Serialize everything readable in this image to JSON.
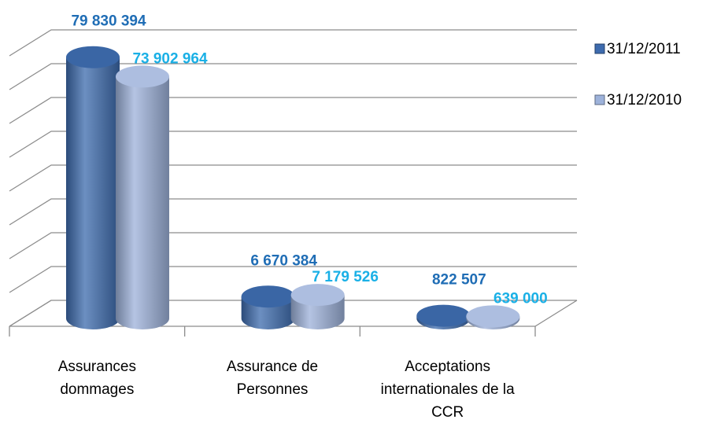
{
  "chart_data": {
    "type": "bar3d",
    "categories": [
      "Assurances dommages",
      "Assurance de Personnes",
      "Acceptations internationales de la CCR"
    ],
    "series": [
      {
        "name": "31/12/2011",
        "color": "#3d6bae",
        "label_color": "#1f6db5",
        "values": [
          79830394,
          6670384,
          822507
        ],
        "value_labels": [
          "79 830 394",
          "6 670 384",
          "822 507"
        ]
      },
      {
        "name": "31/12/2010",
        "color": "#9db2da",
        "label_color": "#1ab0e6",
        "values": [
          73902964,
          7179526,
          639000
        ],
        "value_labels": [
          "73 902 964",
          "7 179 526",
          "639 000"
        ]
      }
    ],
    "ylim": [
      0,
      80000000
    ],
    "yticks": [
      0,
      10000000,
      20000000,
      30000000,
      40000000,
      50000000,
      60000000,
      70000000,
      80000000
    ],
    "grid": true,
    "legend": "right"
  }
}
